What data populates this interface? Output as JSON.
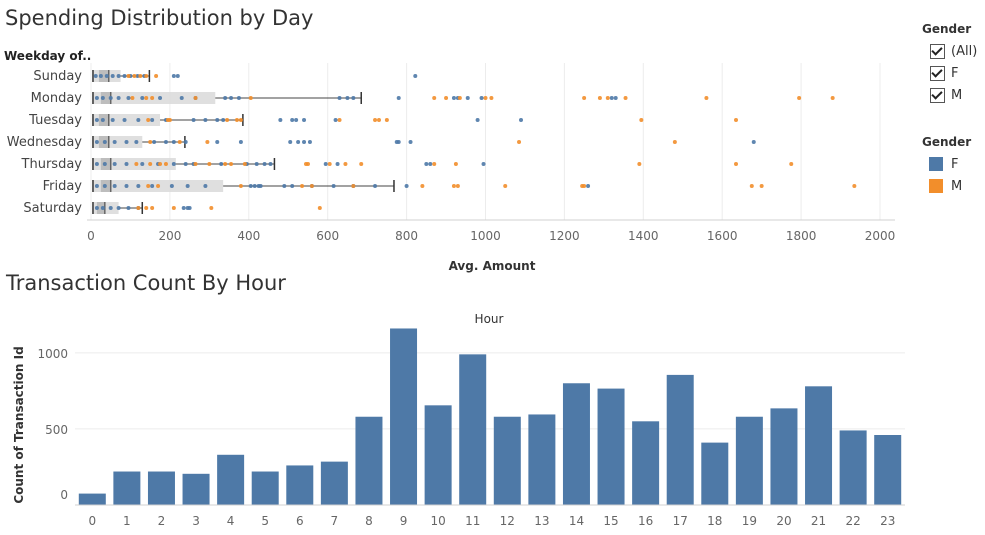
{
  "legend_filter": {
    "title": "Gender",
    "options": [
      {
        "label": "(All)",
        "checked": true
      },
      {
        "label": "F",
        "checked": true
      },
      {
        "label": "M",
        "checked": true
      }
    ]
  },
  "legend_color": {
    "title": "Gender",
    "items": [
      {
        "label": "F",
        "color": "#4e79a7"
      },
      {
        "label": "M",
        "color": "#f28e2b"
      }
    ]
  },
  "chart_data": [
    {
      "type": "scatter",
      "title": "Spending Distribution by Day",
      "row_header": "Weekday of..",
      "xlabel": "Avg. Amount",
      "xlim": [
        0,
        2000
      ],
      "x_ticks": [
        0,
        200,
        400,
        600,
        800,
        1000,
        1200,
        1400,
        1600,
        1800,
        2000
      ],
      "categories": [
        "Sunday",
        "Monday",
        "Tuesday",
        "Wednesday",
        "Thursday",
        "Friday",
        "Saturday"
      ],
      "boxes": [
        {
          "day": "Sunday",
          "min": 5,
          "q1": 20,
          "median": 45,
          "q3": 75,
          "max": 148
        },
        {
          "day": "Monday",
          "min": 5,
          "q1": 25,
          "median": 50,
          "q3": 315,
          "max": 685
        },
        {
          "day": "Tuesday",
          "min": 5,
          "q1": 20,
          "median": 45,
          "q3": 175,
          "max": 385
        },
        {
          "day": "Wednesday",
          "min": 5,
          "q1": 20,
          "median": 45,
          "q3": 130,
          "max": 238
        },
        {
          "day": "Thursday",
          "min": 5,
          "q1": 25,
          "median": 50,
          "q3": 215,
          "max": 465
        },
        {
          "day": "Friday",
          "min": 5,
          "q1": 25,
          "median": 50,
          "q3": 335,
          "max": 768
        },
        {
          "day": "Saturday",
          "min": 5,
          "q1": 15,
          "median": 35,
          "q3": 70,
          "max": 130
        }
      ],
      "series": [
        {
          "name": "F",
          "points": [
            {
              "day": "Sunday",
              "x": [
                12,
                25,
                40,
                55,
                70,
                85,
                100,
                118,
                135,
                210,
                220,
                822
              ]
            },
            {
              "day": "Monday",
              "x": [
                15,
                30,
                50,
                70,
                95,
                130,
                175,
                230,
                265,
                340,
                355,
                375,
                630,
                650,
                665,
                780,
                920,
                930,
                955,
                990,
                1320,
                1330
              ]
            },
            {
              "day": "Tuesday",
              "x": [
                15,
                30,
                55,
                85,
                120,
                155,
                190,
                260,
                290,
                320,
                335,
                480,
                510,
                520,
                540,
                620,
                980,
                1090
              ]
            },
            {
              "day": "Wednesday",
              "x": [
                15,
                35,
                60,
                90,
                115,
                160,
                190,
                210,
                240,
                320,
                380,
                505,
                525,
                540,
                555,
                775,
                780,
                810,
                1680
              ]
            },
            {
              "day": "Thursday",
              "x": [
                15,
                35,
                60,
                90,
                130,
                170,
                210,
                240,
                260,
                330,
                395,
                420,
                440,
                455,
                595,
                625,
                850,
                860,
                995
              ]
            },
            {
              "day": "Friday",
              "x": [
                15,
                35,
                60,
                90,
                120,
                155,
                205,
                245,
                290,
                405,
                415,
                425,
                430,
                490,
                510,
                560,
                615,
                665,
                720,
                800,
                1260
              ]
            },
            {
              "day": "Saturday",
              "x": [
                15,
                30,
                50,
                70,
                95,
                120,
                235,
                245,
                250
              ]
            }
          ]
        },
        {
          "name": "M",
          "points": [
            {
              "day": "Sunday",
              "x": [
                95,
                110,
                125,
                140,
                165
              ]
            },
            {
              "day": "Monday",
              "x": [
                105,
                140,
                155,
                265,
                405,
                870,
                900,
                935,
                1000,
                1015,
                1250,
                1290,
                1310,
                1355,
                1560,
                1795,
                1880
              ]
            },
            {
              "day": "Tuesday",
              "x": [
                145,
                195,
                200,
                345,
                370,
                380,
                630,
                720,
                730,
                750,
                1395,
                1635
              ]
            },
            {
              "day": "Wednesday",
              "x": [
                150,
                225,
                295,
                1085,
                1480
              ]
            },
            {
              "day": "Thursday",
              "x": [
                115,
                150,
                175,
                190,
                265,
                300,
                340,
                355,
                390,
                545,
                550,
                605,
                645,
                685,
                870,
                925,
                1390,
                1635,
                1775
              ]
            },
            {
              "day": "Friday",
              "x": [
                145,
                170,
                380,
                535,
                560,
                665,
                840,
                920,
                930,
                1050,
                1245,
                1250,
                1675,
                1700,
                1935
              ]
            },
            {
              "day": "Saturday",
              "x": [
                120,
                140,
                155,
                210,
                305,
                580
              ]
            }
          ]
        }
      ]
    },
    {
      "type": "bar",
      "title": "Transaction Count By Hour",
      "xlabel": "Hour",
      "ylabel": "Count of Transaction Id",
      "y_ticks": [
        0,
        500,
        1000
      ],
      "ylim": [
        0,
        1150
      ],
      "categories": [
        "0",
        "1",
        "2",
        "3",
        "4",
        "5",
        "6",
        "7",
        "8",
        "9",
        "10",
        "11",
        "12",
        "13",
        "14",
        "15",
        "16",
        "17",
        "18",
        "19",
        "20",
        "21",
        "22",
        "23"
      ],
      "values": [
        75,
        220,
        220,
        205,
        330,
        220,
        260,
        285,
        580,
        1160,
        655,
        990,
        580,
        595,
        800,
        765,
        550,
        855,
        410,
        580,
        635,
        780,
        490,
        460
      ],
      "color": "#4e79a7"
    }
  ]
}
